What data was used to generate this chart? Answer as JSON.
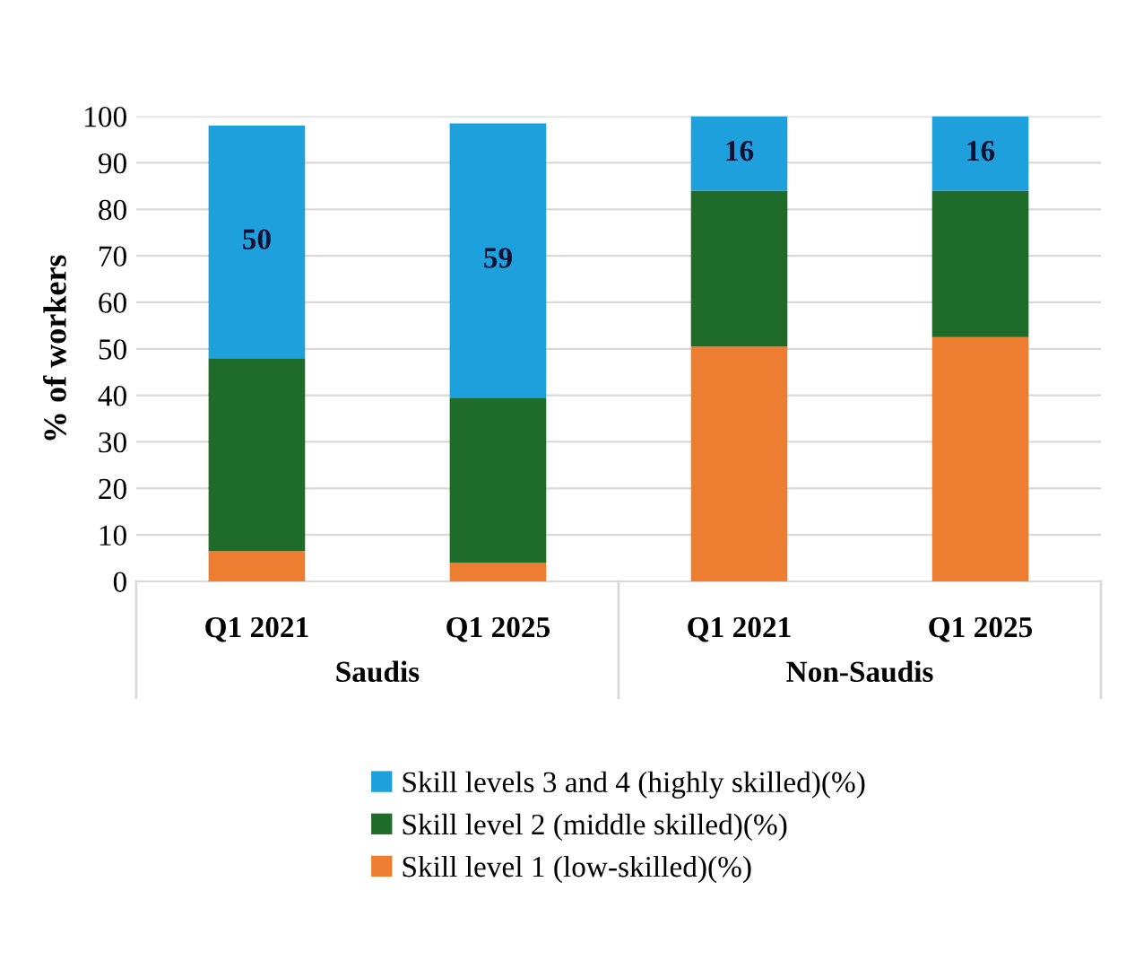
{
  "chart_data": {
    "type": "bar",
    "stacked": true,
    "ylabel": "% of workers",
    "categories": [
      "Q1 2021",
      "Q1 2025",
      "Q1 2021",
      "Q1 2025"
    ],
    "series": [
      {
        "name": "Skill level 1 (low-skilled)(%)",
        "color": "#ed7d31",
        "values": [
          6.5,
          4,
          50.5,
          52.5
        ]
      },
      {
        "name": "Skill level 2 (middle skilled)(%)",
        "color": "#1e6b2a",
        "values": [
          41.5,
          35.5,
          33.5,
          31.5
        ]
      },
      {
        "name": "Skill levels 3 and 4 (highly skilled)(%)",
        "color": "#1ea0dc",
        "values": [
          50,
          59,
          16,
          16
        ],
        "value_labels": [
          "50",
          "59",
          "16",
          "16"
        ]
      }
    ],
    "annotations": [
      "Saudis",
      "Non-Saudis"
    ],
    "ylim": [
      0,
      100
    ],
    "yticks": [
      0,
      10,
      20,
      30,
      40,
      50,
      60,
      70,
      80,
      90,
      100
    ],
    "grid": "y",
    "legend": "bottom"
  }
}
